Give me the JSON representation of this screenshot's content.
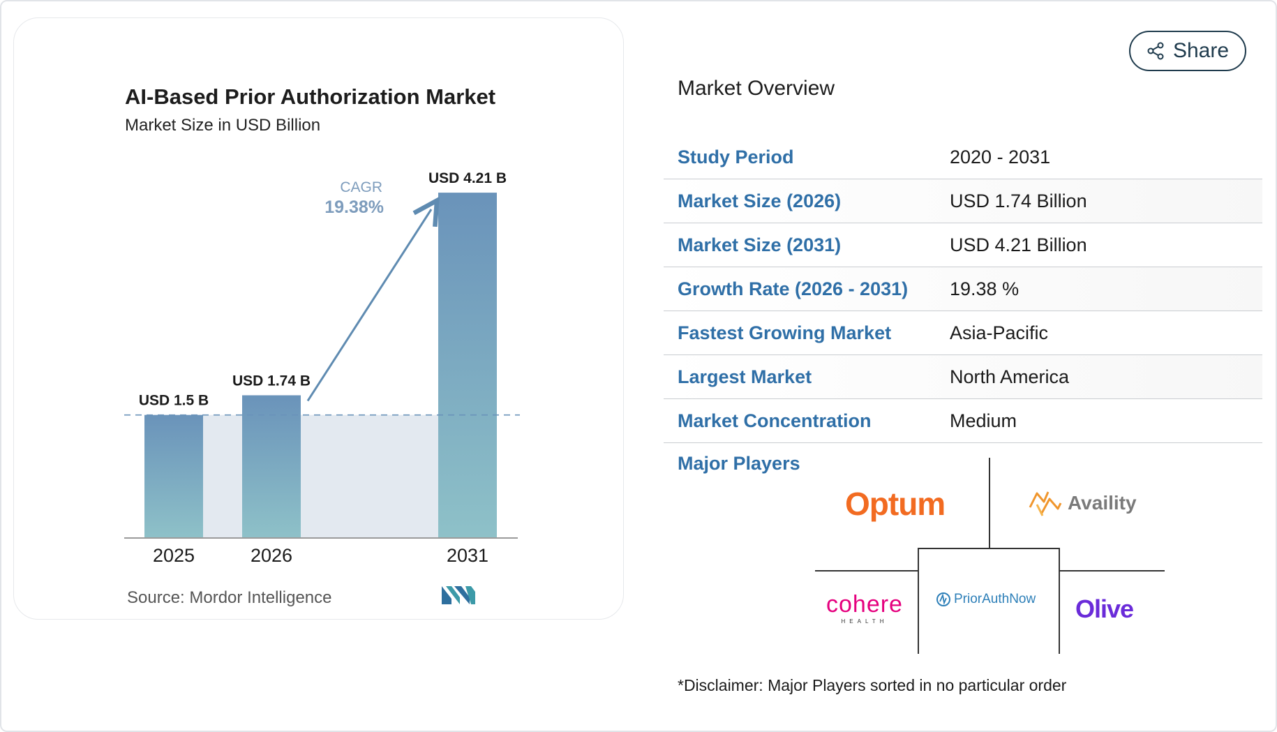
{
  "chart_data": {
    "type": "bar",
    "title": "AI-Based Prior Authorization Market",
    "subtitle": "Market Size in USD Billion",
    "categories": [
      "2025",
      "2026",
      "2031"
    ],
    "values": [
      1.5,
      1.74,
      4.21
    ],
    "data_labels": [
      "USD 1.5 B",
      "USD 1.74 B",
      "USD 4.21 B"
    ],
    "ylim": [
      0,
      4.5
    ],
    "cagr_label": "CAGR",
    "cagr_value": "19.38%",
    "source": "Source: Mordor Intelligence",
    "colors": {
      "bar_top": "#6a93ba",
      "bar_bottom": "#8ec1c8",
      "band": "#e3e9f0",
      "arrow": "#5f8bb1",
      "cagr_text": "#7d9cbc"
    }
  },
  "share": {
    "label": "Share",
    "icon": "share-icon"
  },
  "overview": {
    "title": "Market Overview",
    "rows": [
      {
        "label": "Study Period",
        "value": "2020 - 2031"
      },
      {
        "label": "Market Size (2026)",
        "value": "USD 1.74 Billion"
      },
      {
        "label": "Market Size (2031)",
        "value": "USD 4.21 Billion"
      },
      {
        "label": "Growth Rate (2026 - 2031)",
        "value": "19.38 %"
      },
      {
        "label": "Fastest Growing Market",
        "value": "Asia-Pacific"
      },
      {
        "label": "Largest Market",
        "value": "North America"
      },
      {
        "label": "Market Concentration",
        "value": "Medium"
      }
    ]
  },
  "major_players": {
    "label": "Major Players",
    "logos": {
      "optum": "Optum",
      "availity": "Availity",
      "cohere_main": "cohere",
      "cohere_sub": "HEALTH",
      "priorauth": "PriorAuthNow",
      "olive": "Olive"
    }
  },
  "disclaimer": "*Disclaimer: Major Players sorted in no particular order",
  "colors": {
    "label_blue": "#2f6fa7",
    "dark": "#1f3b4d"
  }
}
